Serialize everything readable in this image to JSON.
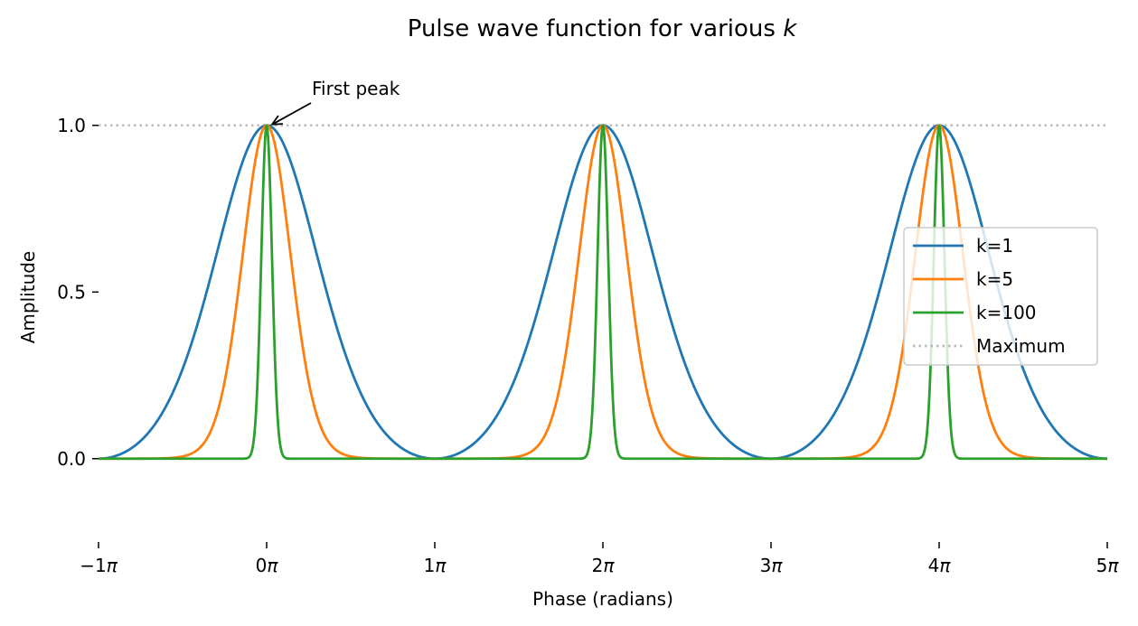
{
  "chart_data": {
    "type": "line",
    "title": "Pulse wave function for various ",
    "title_var": "k",
    "xlabel": "Phase (radians)",
    "ylabel": "Amplitude",
    "xlim": [
      -3.14159,
      15.70796
    ],
    "ylim": [
      -0.25,
      1.2
    ],
    "x_tick_values": [
      -3.14159,
      0,
      3.14159,
      6.28319,
      9.42478,
      12.56637,
      15.70796
    ],
    "x_ticks": [
      {
        "num": "−1",
        "sym": "π"
      },
      {
        "num": "0",
        "sym": "π"
      },
      {
        "num": "1",
        "sym": "π"
      },
      {
        "num": "2",
        "sym": "π"
      },
      {
        "num": "3",
        "sym": "π"
      },
      {
        "num": "4",
        "sym": "π"
      },
      {
        "num": "5",
        "sym": "π"
      }
    ],
    "y_tick_values": [
      0.0,
      0.5,
      1.0
    ],
    "y_ticks": [
      "0.0",
      "0.5",
      "1.0"
    ],
    "grid": false,
    "legend_position": "center-right",
    "x_range": [
      -3.14159,
      15.70796
    ],
    "samples": 1600,
    "series": [
      {
        "name": "k=1",
        "k": 1,
        "color": "#1f77b4"
      },
      {
        "name": "k=5",
        "k": 5,
        "color": "#ff7f0e"
      },
      {
        "name": "k=100",
        "k": 100,
        "color": "#2ca02c"
      }
    ],
    "reference_line": {
      "name": "Maximum",
      "y": 1.0,
      "color": "#bbbbbb",
      "style": "dotted"
    },
    "annotation": {
      "text": "First peak",
      "x": 0,
      "y": 1.0
    }
  }
}
